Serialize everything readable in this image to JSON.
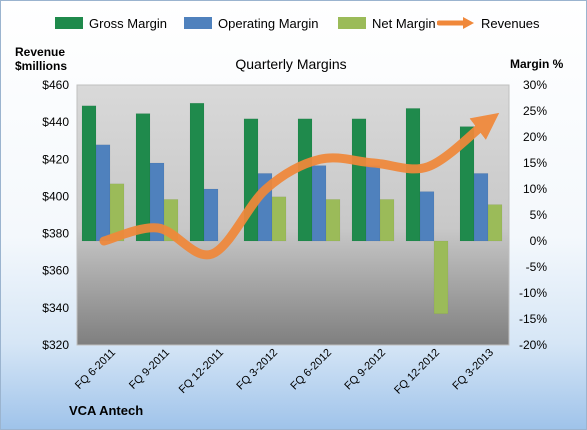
{
  "chart_data": {
    "type": "bar",
    "title": "Quarterly Margins",
    "footer": "VCA Antech",
    "left_axis": {
      "label_line1": "Revenue",
      "label_line2": "$millions",
      "ticks": [
        "$460",
        "$440",
        "$420",
        "$400",
        "$380",
        "$360",
        "$340",
        "$320"
      ],
      "ylim": [
        320,
        460
      ]
    },
    "right_axis": {
      "label": "Margin %",
      "ticks": [
        "30%",
        "25%",
        "20%",
        "15%",
        "10%",
        "5%",
        "0%",
        "-5%",
        "-10%",
        "-15%",
        "-20%"
      ],
      "ylim": [
        -20,
        30
      ]
    },
    "categories": [
      "FQ 6-2011",
      "FQ 9-2011",
      "FQ 12-2011",
      "FQ 3-2012",
      "FQ 6-2012",
      "FQ 9-2012",
      "FQ 12-2012",
      "FQ 3-2013"
    ],
    "series": [
      {
        "name": "Gross Margin",
        "type": "bar",
        "axis": "right",
        "color": "#1f8a4c",
        "values": [
          26,
          24.5,
          26.5,
          23.5,
          23.5,
          23.5,
          25.5,
          22
        ]
      },
      {
        "name": "Operating Margin",
        "type": "bar",
        "axis": "right",
        "color": "#4f81bd",
        "values": [
          18.5,
          15,
          10,
          13,
          14.5,
          14.5,
          9.5,
          13
        ]
      },
      {
        "name": "Net Margin",
        "type": "bar",
        "axis": "right",
        "color": "#9bbb59",
        "values": [
          11,
          8,
          0,
          8.5,
          8,
          8,
          -14,
          7
        ]
      },
      {
        "name": "Revenues",
        "type": "line",
        "axis": "left",
        "color": "#f0883a",
        "values": [
          376,
          383,
          369,
          404,
          420,
          418,
          416,
          438
        ]
      }
    ],
    "grid": false,
    "legend_position": "top"
  }
}
